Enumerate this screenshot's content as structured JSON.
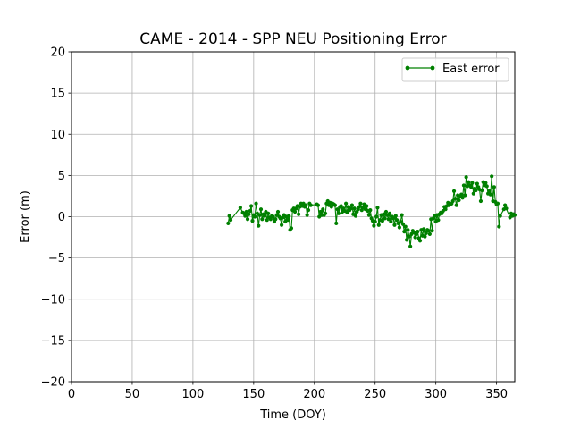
{
  "chart_data": {
    "type": "line",
    "title": "CAME - 2014 - SPP NEU Positioning Error",
    "xlabel": "Time (DOY)",
    "ylabel": "Error (m)",
    "xlim": [
      0,
      365
    ],
    "ylim": [
      -20,
      20
    ],
    "xticks": [
      0,
      50,
      100,
      150,
      200,
      250,
      300,
      350
    ],
    "yticks": [
      -20,
      -15,
      -10,
      -5,
      0,
      5,
      10,
      15,
      20
    ],
    "grid": true,
    "legend_position": "top-right",
    "series": [
      {
        "name": "East error",
        "color": "#008000",
        "marker": "circle",
        "points": [
          [
            129,
            -0.8
          ],
          [
            130,
            0.1
          ],
          [
            131,
            -0.4
          ],
          [
            139,
            1.1
          ],
          [
            141,
            0.5
          ],
          [
            142,
            0.4
          ],
          [
            143,
            0.1
          ],
          [
            144,
            0.6
          ],
          [
            145,
            -0.3
          ],
          [
            146,
            0.3
          ],
          [
            147,
            0.7
          ],
          [
            148,
            1.3
          ],
          [
            149,
            -0.5
          ],
          [
            150,
            0.2
          ],
          [
            151,
            0.0
          ],
          [
            152,
            1.6
          ],
          [
            153,
            0.4
          ],
          [
            154,
            -1.1
          ],
          [
            155,
            0.2
          ],
          [
            156,
            0.9
          ],
          [
            157,
            -0.3
          ],
          [
            158,
            0.3
          ],
          [
            159,
            0.1
          ],
          [
            160,
            0.6
          ],
          [
            161,
            -0.4
          ],
          [
            162,
            0.4
          ],
          [
            163,
            -0.1
          ],
          [
            164,
            -0.3
          ],
          [
            165,
            0.1
          ],
          [
            166,
            0.0
          ],
          [
            167,
            -0.6
          ],
          [
            168,
            -0.3
          ],
          [
            169,
            0.2
          ],
          [
            170,
            0.6
          ],
          [
            171,
            0.0
          ],
          [
            172,
            -0.2
          ],
          [
            173,
            -1.0
          ],
          [
            174,
            -0.1
          ],
          [
            175,
            0.2
          ],
          [
            176,
            -0.6
          ],
          [
            177,
            0.0
          ],
          [
            178,
            -0.4
          ],
          [
            179,
            0.1
          ],
          [
            180,
            -1.6
          ],
          [
            181,
            -1.4
          ],
          [
            182,
            0.8
          ],
          [
            183,
            1.0
          ],
          [
            184,
            0.6
          ],
          [
            185,
            1.0
          ],
          [
            186,
            1.3
          ],
          [
            187,
            0.3
          ],
          [
            188,
            1.2
          ],
          [
            189,
            1.6
          ],
          [
            190,
            1.3
          ],
          [
            191,
            1.6
          ],
          [
            192,
            1.2
          ],
          [
            193,
            1.4
          ],
          [
            194,
            0.2
          ],
          [
            195,
            0.8
          ],
          [
            196,
            1.6
          ],
          [
            197,
            1.4
          ],
          [
            202,
            1.5
          ],
          [
            203,
            1.4
          ],
          [
            204,
            0.0
          ],
          [
            205,
            0.6
          ],
          [
            206,
            0.2
          ],
          [
            207,
            0.9
          ],
          [
            208,
            0.2
          ],
          [
            209,
            0.4
          ],
          [
            210,
            1.6
          ],
          [
            211,
            1.9
          ],
          [
            212,
            1.4
          ],
          [
            213,
            1.7
          ],
          [
            214,
            1.2
          ],
          [
            215,
            1.6
          ],
          [
            216,
            1.5
          ],
          [
            217,
            1.4
          ],
          [
            218,
            -0.8
          ],
          [
            219,
            0.9
          ],
          [
            220,
            0.4
          ],
          [
            221,
            1.2
          ],
          [
            222,
            1.3
          ],
          [
            223,
            0.6
          ],
          [
            224,
            1.0
          ],
          [
            225,
            0.7
          ],
          [
            226,
            1.6
          ],
          [
            227,
            0.5
          ],
          [
            228,
            1.2
          ],
          [
            229,
            0.8
          ],
          [
            230,
            1.0
          ],
          [
            231,
            1.4
          ],
          [
            232,
            0.3
          ],
          [
            233,
            1.0
          ],
          [
            234,
            0.1
          ],
          [
            235,
            0.6
          ],
          [
            236,
            0.9
          ],
          [
            237,
            1.2
          ],
          [
            238,
            1.6
          ],
          [
            239,
            0.8
          ],
          [
            240,
            1.1
          ],
          [
            241,
            1.5
          ],
          [
            242,
            0.9
          ],
          [
            243,
            1.3
          ],
          [
            244,
            0.7
          ],
          [
            245,
            0.2
          ],
          [
            246,
            0.8
          ],
          [
            247,
            -0.2
          ],
          [
            248,
            -0.5
          ],
          [
            249,
            -1.1
          ],
          [
            250,
            -0.6
          ],
          [
            251,
            0.0
          ],
          [
            252,
            1.1
          ],
          [
            253,
            -1.0
          ],
          [
            254,
            -0.4
          ],
          [
            255,
            0.2
          ],
          [
            256,
            -0.5
          ],
          [
            257,
            0.3
          ],
          [
            258,
            -0.2
          ],
          [
            259,
            0.6
          ],
          [
            260,
            0.2
          ],
          [
            261,
            -0.3
          ],
          [
            262,
            0.4
          ],
          [
            263,
            -0.6
          ],
          [
            264,
            0.0
          ],
          [
            265,
            -0.2
          ],
          [
            266,
            -1.0
          ],
          [
            267,
            0.1
          ],
          [
            268,
            -0.4
          ],
          [
            269,
            -0.8
          ],
          [
            270,
            -1.3
          ],
          [
            271,
            -0.6
          ],
          [
            272,
            0.2
          ],
          [
            273,
            -0.9
          ],
          [
            274,
            -1.8
          ],
          [
            275,
            -1.2
          ],
          [
            276,
            -2.8
          ],
          [
            277,
            -1.6
          ],
          [
            278,
            -2.4
          ],
          [
            279,
            -3.6
          ],
          [
            280,
            -2.1
          ],
          [
            281,
            -1.7
          ],
          [
            282,
            -1.9
          ],
          [
            283,
            -2.5
          ],
          [
            284,
            -2.1
          ],
          [
            285,
            -1.8
          ],
          [
            286,
            -2.6
          ],
          [
            287,
            -2.9
          ],
          [
            288,
            -1.6
          ],
          [
            289,
            -2.3
          ],
          [
            290,
            -1.5
          ],
          [
            291,
            -2.4
          ],
          [
            292,
            -2.0
          ],
          [
            293,
            -1.6
          ],
          [
            294,
            -1.7
          ],
          [
            295,
            -2.1
          ],
          [
            296,
            -0.3
          ],
          [
            297,
            -1.7
          ],
          [
            298,
            -0.2
          ],
          [
            299,
            0.1
          ],
          [
            300,
            -0.6
          ],
          [
            301,
            0.2
          ],
          [
            302,
            -0.4
          ],
          [
            303,
            0.3
          ],
          [
            304,
            0.5
          ],
          [
            305,
            0.4
          ],
          [
            306,
            0.7
          ],
          [
            307,
            1.2
          ],
          [
            308,
            0.9
          ],
          [
            309,
            1.3
          ],
          [
            310,
            1.7
          ],
          [
            311,
            1.4
          ],
          [
            312,
            1.5
          ],
          [
            313,
            1.6
          ],
          [
            314,
            1.9
          ],
          [
            315,
            3.1
          ],
          [
            316,
            2.2
          ],
          [
            317,
            1.4
          ],
          [
            318,
            2.6
          ],
          [
            319,
            2.0
          ],
          [
            320,
            2.5
          ],
          [
            321,
            2.7
          ],
          [
            322,
            2.3
          ],
          [
            323,
            3.8
          ],
          [
            324,
            2.6
          ],
          [
            325,
            4.8
          ],
          [
            326,
            3.7
          ],
          [
            327,
            4.2
          ],
          [
            328,
            3.8
          ],
          [
            329,
            3.6
          ],
          [
            330,
            4.1
          ],
          [
            331,
            2.8
          ],
          [
            332,
            3.4
          ],
          [
            333,
            3.2
          ],
          [
            334,
            4.0
          ],
          [
            335,
            3.6
          ],
          [
            336,
            3.3
          ],
          [
            337,
            1.9
          ],
          [
            338,
            3.2
          ],
          [
            339,
            4.2
          ],
          [
            340,
            3.8
          ],
          [
            341,
            4.1
          ],
          [
            342,
            3.7
          ],
          [
            343,
            2.8
          ],
          [
            344,
            3.1
          ],
          [
            345,
            2.7
          ],
          [
            346,
            4.9
          ],
          [
            347,
            1.9
          ],
          [
            348,
            3.6
          ],
          [
            349,
            1.8
          ],
          [
            350,
            1.5
          ],
          [
            351,
            1.6
          ],
          [
            352,
            -1.2
          ],
          [
            353,
            0.1
          ],
          [
            356,
            0.9
          ],
          [
            357,
            1.4
          ],
          [
            358,
            1.0
          ],
          [
            361,
            -0.1
          ],
          [
            362,
            0.4
          ],
          [
            363,
            0.1
          ],
          [
            364,
            0.3
          ],
          [
            365,
            0.2
          ]
        ]
      }
    ]
  }
}
